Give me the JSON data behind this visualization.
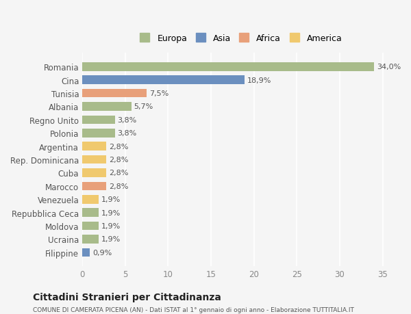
{
  "categories": [
    "Filippine",
    "Ucraina",
    "Moldova",
    "Repubblica Ceca",
    "Venezuela",
    "Marocco",
    "Cuba",
    "Rep. Dominicana",
    "Argentina",
    "Polonia",
    "Regno Unito",
    "Albania",
    "Tunisia",
    "Cina",
    "Romania"
  ],
  "values": [
    0.9,
    1.9,
    1.9,
    1.9,
    1.9,
    2.8,
    2.8,
    2.8,
    2.8,
    3.8,
    3.8,
    5.7,
    7.5,
    18.9,
    34.0
  ],
  "colors": [
    "#6b8fbf",
    "#a8bb8a",
    "#a8bb8a",
    "#a8bb8a",
    "#f0c96e",
    "#e8a07a",
    "#f0c96e",
    "#f0c96e",
    "#f0c96e",
    "#a8bb8a",
    "#a8bb8a",
    "#a8bb8a",
    "#e8a07a",
    "#6b8fbf",
    "#a8bb8a"
  ],
  "labels": [
    "0,9%",
    "1,9%",
    "1,9%",
    "1,9%",
    "1,9%",
    "2,8%",
    "2,8%",
    "2,8%",
    "2,8%",
    "3,8%",
    "3,8%",
    "5,7%",
    "7,5%",
    "18,9%",
    "34,0%"
  ],
  "legend_labels": [
    "Europa",
    "Asia",
    "Africa",
    "America"
  ],
  "legend_colors": [
    "#a8bb8a",
    "#6b8fbf",
    "#e8a07a",
    "#f0c96e"
  ],
  "title": "Cittadini Stranieri per Cittadinanza",
  "subtitle": "COMUNE DI CAMERATA PICENA (AN) - Dati ISTAT al 1° gennaio di ogni anno - Elaborazione TUTTITALIA.IT",
  "xlim": [
    0,
    37
  ],
  "xticks": [
    0,
    5,
    10,
    15,
    20,
    25,
    30,
    35
  ],
  "background_color": "#f5f5f5",
  "bar_height": 0.65
}
